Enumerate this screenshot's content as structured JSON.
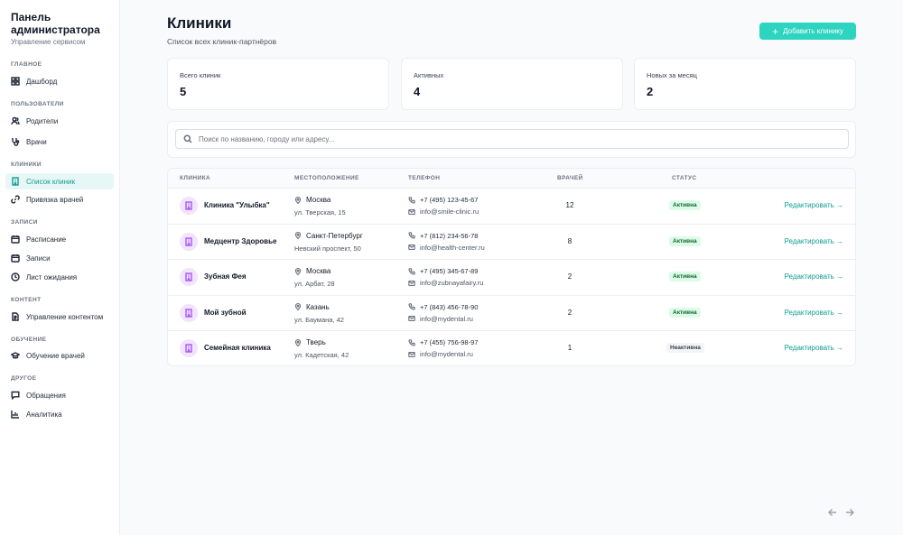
{
  "sidebar": {
    "title": "Панель администратора",
    "subtitle": "Управление сервисом",
    "sections": {
      "main": "ГЛАВНОЕ",
      "users": "ПОЛЬЗОВАТЕЛИ",
      "clinics": "КЛИНИКИ",
      "records": "ЗАПИСИ",
      "content": "КОНТЕНТ",
      "training": "ОБУЧЕНИЕ",
      "other": "ДРУГОЕ"
    },
    "items": {
      "dashboard": "Дашборд",
      "parents": "Родители",
      "doctors": "Врачи",
      "clinic_list": "Список клиник",
      "doctor_binding": "Привязка врачей",
      "schedule": "Расписание",
      "records": "Записи",
      "waitlist": "Лист ожидания",
      "content_mgmt": "Управление контентом",
      "doctor_training": "Обучение врачей",
      "requests": "Обращения",
      "analytics": "Аналитика"
    }
  },
  "header": {
    "title": "Клиники",
    "subtitle": "Список всех клиник-партнёров",
    "add_button": "Добавить клинику"
  },
  "stats": {
    "total_label": "Всего клиник",
    "total_value": "5",
    "active_label": "Активных",
    "active_value": "4",
    "new_label": "Новых за месяц",
    "new_value": "2"
  },
  "search": {
    "placeholder": "Поиск по названию, городу или адресу..."
  },
  "table": {
    "headers": {
      "clinic": "КЛИНИКА",
      "location": "МЕСТОПОЛОЖЕНИЕ",
      "phone": "ТЕЛЕФОН",
      "doctors": "ВРАЧЕЙ",
      "status": "СТАТУС"
    },
    "edit_label": "Редактировать →",
    "rows": [
      {
        "name": "Клиника \"Улыбка\"",
        "city": "Москва",
        "address": "ул. Тверская, 15",
        "phone": "+7 (495) 123-45-67",
        "email": "info@smile-clinic.ru",
        "doctors": "12",
        "status": "Активна"
      },
      {
        "name": "Медцентр Здоровье",
        "city": "Санкт-Петербург",
        "address": "Невский проспект, 50",
        "phone": "+7 (812) 234-56-78",
        "email": "info@health-center.ru",
        "doctors": "8",
        "status": "Активна"
      },
      {
        "name": "Зубная Фея",
        "city": "Москва",
        "address": "ул. Арбат, 28",
        "phone": "+7 (495) 345-67-89",
        "email": "info@zubnayafairy.ru",
        "doctors": "2",
        "status": "Активна"
      },
      {
        "name": "Мой зубной",
        "city": "Казань",
        "address": "ул. Баумана, 42",
        "phone": "+7 (843) 456-78-90",
        "email": "info@mydental.ru",
        "doctors": "2",
        "status": "Активна"
      },
      {
        "name": "Семейная клиника",
        "city": "Тверь",
        "address": "ул. Кадетская, 42",
        "phone": "+7 (455) 756-98-97",
        "email": "info@mydental.ru",
        "doctors": "1",
        "status": "Неактивна"
      }
    ]
  },
  "colors": {
    "accent": "#2dd4bf",
    "active_nav_bg": "#e6f7f5",
    "status_active_bg": "#dcfce7",
    "status_inactive_bg": "#f3f4f6",
    "clinic_icon_bg": "#f1e4fb"
  }
}
